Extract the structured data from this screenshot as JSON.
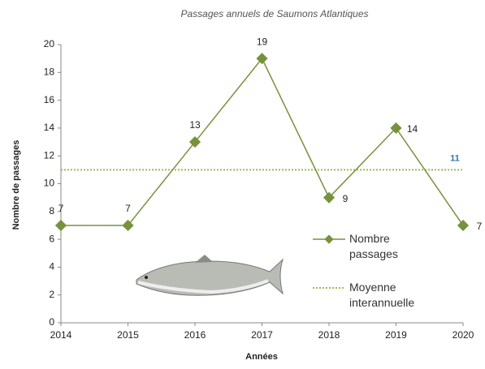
{
  "chart_data": {
    "type": "line",
    "title": "Passages annuels de Saumons Atlantiques",
    "xlabel": "Années",
    "ylabel": "Nombre de passages",
    "x": [
      2014,
      2015,
      2016,
      2017,
      2018,
      2019,
      2020
    ],
    "series": [
      {
        "name": "Nombre passages",
        "color": "#76923c",
        "values": [
          7,
          7,
          13,
          19,
          9,
          14,
          7
        ]
      }
    ],
    "reference_line": {
      "name": "Moyenne interannuelle",
      "value": 11,
      "color": "#9bbb59",
      "label_color": "#2e75b6"
    },
    "xlim": [
      2014,
      2020
    ],
    "xticks": [
      2014,
      2015,
      2016,
      2017,
      2018,
      2019,
      2020
    ],
    "ylim": [
      0,
      20
    ],
    "yticks": [
      0,
      2,
      4,
      6,
      8,
      10,
      12,
      14,
      16,
      18,
      20
    ],
    "grid": false
  }
}
